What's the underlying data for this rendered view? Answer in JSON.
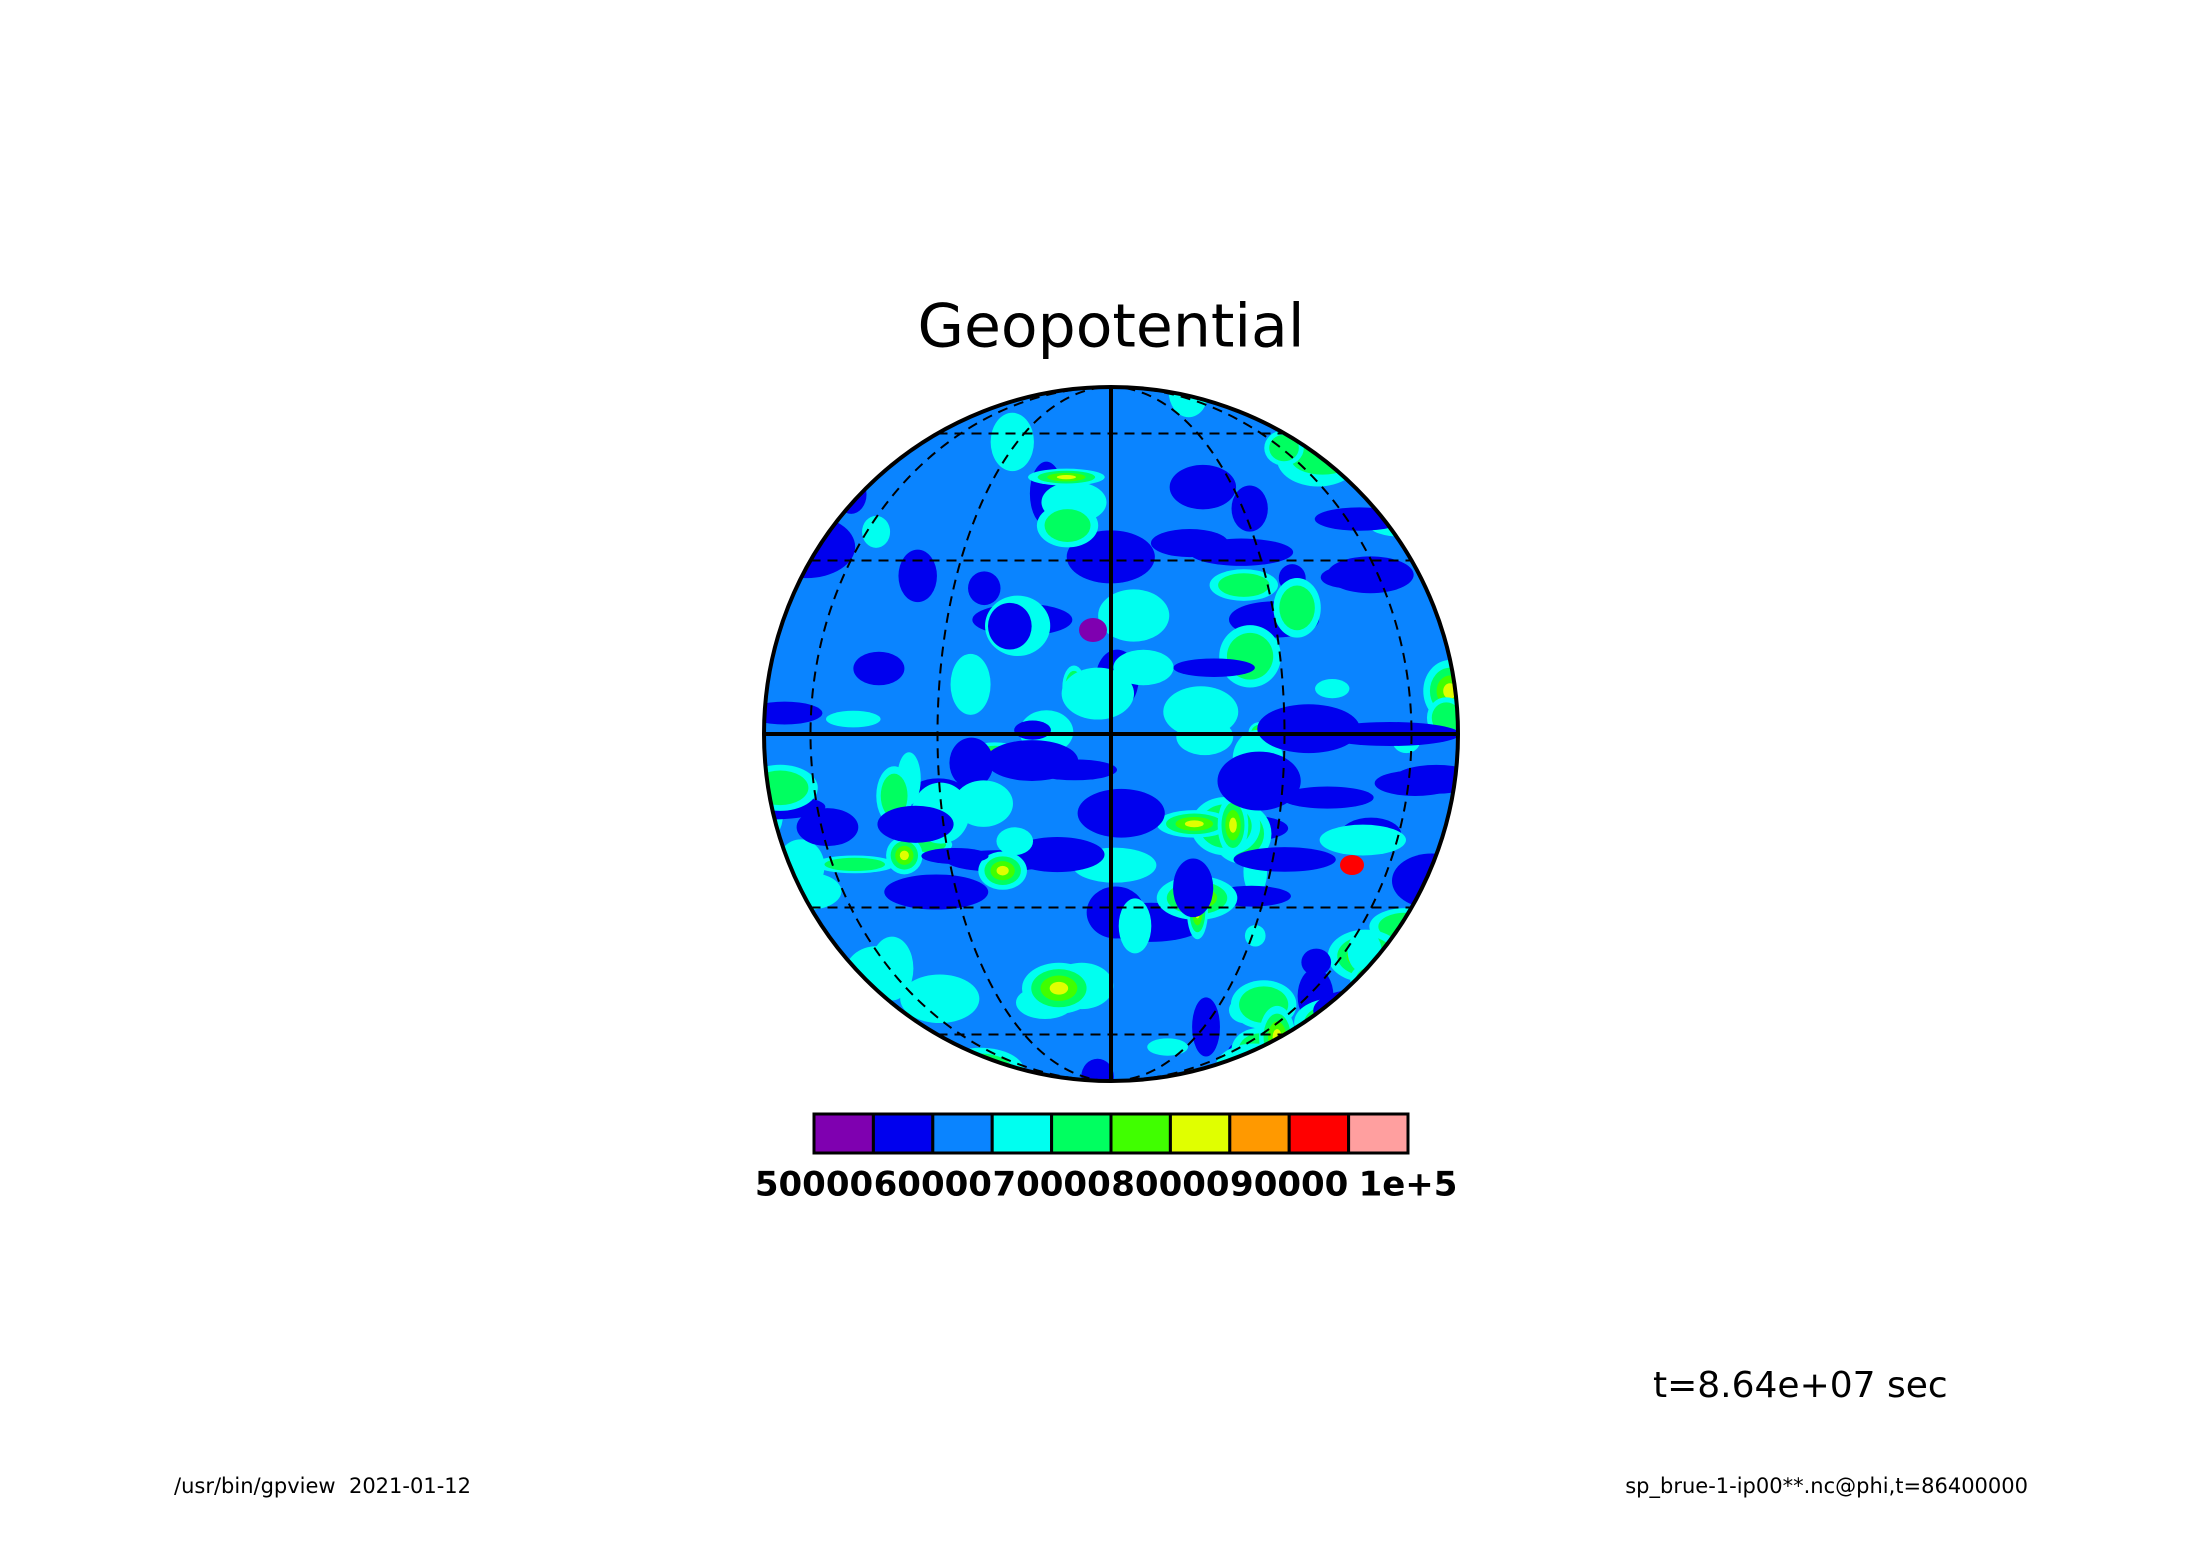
{
  "chart_data": {
    "type": "contour",
    "title": "Geopotential",
    "colorbar": {
      "levels": [
        50000,
        55000,
        60000,
        65000,
        70000,
        75000,
        80000,
        85000,
        90000,
        95000,
        100000
      ],
      "colors": [
        "#7f00b0",
        "#0000ee",
        "#0a84ff",
        "#00fff0",
        "#00ff60",
        "#40ff00",
        "#e0ff00",
        "#ff9900",
        "#ff0000",
        "#ff9f9f"
      ],
      "ticks": [
        50000,
        60000,
        70000,
        80000,
        90000,
        {
          "value": 100000,
          "label": "1e+5"
        }
      ]
    },
    "annotation": "t=8.64e+07 sec",
    "footer_left": "/usr/bin/gpview  2021-01-12",
    "footer_right": "sp_brue-1-ip00**.nc@phi,t=86400000"
  }
}
